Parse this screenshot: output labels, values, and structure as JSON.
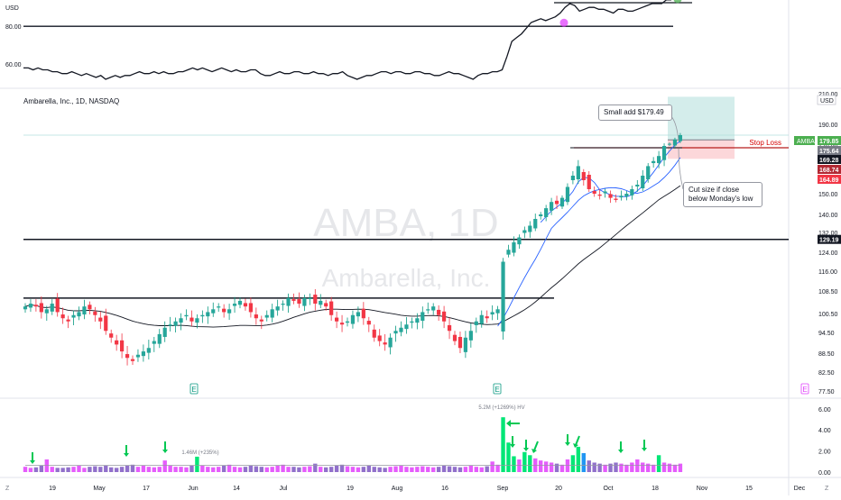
{
  "header": {
    "title": "Ambarella, Inc., 1D, NASDAQ",
    "watermark_symbol": "AMBA, 1D",
    "watermark_name": "Ambarella, Inc."
  },
  "indicator_panel": {
    "currency_label": "USD",
    "ticks": [
      "80.00",
      "60.00"
    ],
    "tick_values": [
      80,
      60
    ],
    "line_values": [
      58,
      58,
      57,
      58,
      57,
      57,
      56,
      56,
      55,
      55,
      56,
      55,
      54,
      55,
      54,
      53,
      54,
      52,
      53,
      54,
      53,
      54,
      54,
      55,
      56,
      55,
      55,
      56,
      55,
      56,
      55,
      55,
      56,
      56,
      57,
      58,
      57,
      58,
      57,
      56,
      57,
      58,
      57,
      56,
      57,
      56,
      56,
      57,
      57,
      55,
      54,
      54,
      55,
      56,
      55,
      55,
      56,
      56,
      55,
      55,
      56,
      55,
      55,
      54,
      55,
      55,
      56,
      54,
      53,
      52,
      53,
      54,
      54,
      55,
      56,
      56,
      55,
      56,
      56,
      55,
      55,
      56,
      56,
      55,
      55,
      54,
      54,
      55,
      56,
      55,
      55,
      54,
      53,
      52,
      54,
      55,
      55,
      56,
      56,
      57,
      64,
      72,
      74,
      76,
      79,
      82,
      83,
      84,
      83,
      84,
      85,
      87,
      90,
      92,
      91,
      88,
      89,
      90,
      90,
      89,
      89,
      88,
      87,
      89,
      89,
      88,
      88,
      89,
      90,
      91,
      92,
      92,
      92,
      94,
      94
    ],
    "level_high": 92,
    "level_low": 80
  },
  "main_axis": {
    "currency_label": "USD",
    "ticks": [
      "210.00",
      "190.00",
      "170.00",
      "160.00",
      "150.00",
      "140.00",
      "132.00",
      "124.00",
      "116.00",
      "108.50",
      "100.50",
      "94.50",
      "88.50",
      "82.50",
      "77.50"
    ],
    "tick_values": [
      210,
      190,
      170,
      160,
      150,
      140,
      132,
      124,
      116,
      108.5,
      100.5,
      94.5,
      88.5,
      82.5,
      77.5
    ],
    "price_badges": [
      {
        "label": "AMBA",
        "value": "179.85",
        "color": "#4caf50"
      },
      {
        "label": "",
        "value": "175.64",
        "color": "#787b86"
      },
      {
        "label": "",
        "value": "169.28",
        "color": "#131722"
      },
      {
        "label": "",
        "value": "168.74",
        "color": "#b22833"
      },
      {
        "label": "",
        "value": "164.89",
        "color": "#f23645"
      },
      {
        "label": "",
        "value": "129.19",
        "color": "#131722"
      }
    ],
    "stop_loss_label": "Stop Loss",
    "e_markers": [
      "E",
      "E",
      "E"
    ]
  },
  "annotations": {
    "small_add": "Small add $179.49",
    "cut_size": "Cut size if close below Monday's low"
  },
  "volume_panel": {
    "ticks": [
      "6.00",
      "4.00",
      "2.00",
      "0.00"
    ],
    "tick_values": [
      6,
      4,
      2,
      0
    ],
    "spike_label": "5.2M (+1269%) HV",
    "mid_label": "1.46M (+235%)"
  },
  "time_axis": {
    "labels": [
      "19",
      "May",
      "17",
      "Jun",
      "14",
      "Jul",
      "19",
      "Aug",
      "16",
      "Sep",
      "20",
      "Oct",
      "18",
      "Nov",
      "15",
      "Dec"
    ],
    "z_left": "Z",
    "z_right": "Z"
  },
  "chart_data": {
    "type": "candlestick",
    "title": "Ambarella, Inc., 1D, NASDAQ",
    "xlabel": "",
    "ylabel": "",
    "ylim": [
      77.5,
      210
    ],
    "close": [
      103,
      104,
      103,
      101,
      102,
      104,
      101,
      99,
      98,
      100,
      101,
      103,
      102,
      100,
      98,
      95,
      93,
      91,
      89,
      87,
      86,
      88,
      89,
      90,
      92,
      94,
      96,
      97,
      98,
      99,
      100,
      98,
      99,
      100,
      101,
      102,
      103,
      101,
      102,
      104,
      105,
      103,
      101,
      99,
      98,
      100,
      102,
      103,
      104,
      106,
      105,
      104,
      106,
      106,
      104,
      105,
      103,
      100,
      98,
      97,
      98,
      100,
      101,
      99,
      97,
      93,
      92,
      91,
      93,
      95,
      96,
      97,
      98,
      99,
      101,
      102,
      103,
      100,
      98,
      95,
      92,
      90,
      93,
      95,
      98,
      100,
      99,
      101,
      102,
      120,
      125,
      128,
      130,
      133,
      135,
      138,
      140,
      143,
      146,
      145,
      148,
      153,
      158,
      162,
      156,
      152,
      150,
      149,
      151,
      148,
      147,
      149,
      150,
      152,
      154,
      158,
      162,
      164,
      166,
      170,
      172,
      176,
      180
    ],
    "series": [
      {
        "name": "",
        "values": []
      }
    ],
    "levels": {
      "resistance_top": 129.19,
      "base_resistance": 106,
      "stop_loss": 169.28,
      "target_zone_top": 208,
      "entry": 175.64,
      "stop_zone_bottom": 164.89
    },
    "volume_millions": [
      0.5,
      0.4,
      0.45,
      0.6,
      1.2,
      0.5,
      0.4,
      0.4,
      0.45,
      0.5,
      0.6,
      0.4,
      0.5,
      0.55,
      0.5,
      0.6,
      0.45,
      0.4,
      0.5,
      0.6,
      0.7,
      0.5,
      0.6,
      0.5,
      0.45,
      0.5,
      1.1,
      0.6,
      0.5,
      0.5,
      0.45,
      0.6,
      1.46,
      0.6,
      0.5,
      0.45,
      0.5,
      0.6,
      0.7,
      0.5,
      0.45,
      0.5,
      0.6,
      0.55,
      0.5,
      0.45,
      0.5,
      0.6,
      0.7,
      0.5,
      0.5,
      0.45,
      0.5,
      0.55,
      0.8,
      0.5,
      0.45,
      0.5,
      0.6,
      0.7,
      0.55,
      0.5,
      0.45,
      0.5,
      0.6,
      0.5,
      0.45,
      0.4,
      0.5,
      0.55,
      0.6,
      0.5,
      0.45,
      0.5,
      0.55,
      0.5,
      0.45,
      0.5,
      0.6,
      0.55,
      0.5,
      0.45,
      0.5,
      0.6,
      0.5,
      0.45,
      0.55,
      1.0,
      0.7,
      5.2,
      2.8,
      1.5,
      1.2,
      1.9,
      1.6,
      1.3,
      1.1,
      1.0,
      0.9,
      0.8,
      0.7,
      1.2,
      1.6,
      2.4,
      1.8,
      1.1,
      0.9,
      0.8,
      0.7,
      0.8,
      0.9,
      0.8,
      0.7,
      0.9,
      1.2,
      0.9,
      0.8,
      0.7,
      1.6,
      0.9,
      0.8,
      0.7,
      0.8
    ]
  }
}
